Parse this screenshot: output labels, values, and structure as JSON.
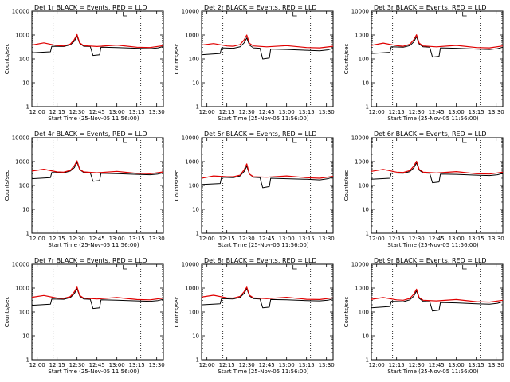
{
  "figure": {
    "colors": {
      "events": "#000000",
      "lld": "#e00000",
      "axes": "#000000",
      "background": "#ffffff"
    }
  },
  "chart_data": [
    {
      "type": "line",
      "title": "Det 1r BLACK = Events, RED = LLD",
      "xlabel": "Start Time (25-Nov-05 11:56:00)",
      "ylabel": "Counts/sec",
      "x_ticks": [
        "12:00",
        "12:15",
        "12:30",
        "12:45",
        "13:00",
        "13:15",
        "13:30"
      ],
      "y_ticks": [
        "1",
        "10",
        "100",
        "1000",
        "10000"
      ],
      "ylim": [
        1,
        10000
      ],
      "yscale": "log",
      "xlim": [
        "11:56",
        "13:35"
      ],
      "x_markers": [
        "12:12",
        "13:18"
      ],
      "series": [
        {
          "name": "Events",
          "x": [
            "11:56",
            "12:10",
            "12:11",
            "12:20",
            "12:25",
            "12:28",
            "12:30",
            "12:32",
            "12:35",
            "12:40",
            "12:42",
            "12:47",
            "12:48",
            "13:00",
            "13:15",
            "13:25",
            "13:31",
            "13:35"
          ],
          "values": [
            180,
            200,
            340,
            330,
            390,
            550,
            900,
            450,
            340,
            330,
            140,
            150,
            310,
            300,
            280,
            270,
            290,
            330
          ]
        },
        {
          "name": "LLD",
          "x": [
            "11:56",
            "12:05",
            "12:15",
            "12:20",
            "12:25",
            "12:28",
            "12:30",
            "12:32",
            "12:35",
            "12:45",
            "13:00",
            "13:15",
            "13:25",
            "13:35"
          ],
          "values": [
            380,
            470,
            360,
            350,
            420,
            650,
            1050,
            470,
            360,
            330,
            380,
            310,
            300,
            360
          ]
        }
      ]
    },
    {
      "type": "line",
      "title": "Det 2r BLACK = Events, RED = LLD",
      "xlabel": "Start Time (25-Nov-05 11:56:00)",
      "ylabel": "Counts/sec",
      "x_ticks": [
        "12:00",
        "12:15",
        "12:30",
        "12:45",
        "13:00",
        "13:15",
        "13:30"
      ],
      "y_ticks": [
        "1",
        "10",
        "100",
        "1000",
        "10000"
      ],
      "ylim": [
        1,
        10000
      ],
      "yscale": "log",
      "xlim": [
        "11:56",
        "13:35"
      ],
      "x_markers": [
        "12:12",
        "13:18"
      ],
      "series": [
        {
          "name": "Events",
          "x": [
            "11:56",
            "12:10",
            "12:11",
            "12:20",
            "12:25",
            "12:28",
            "12:30",
            "12:32",
            "12:35",
            "12:40",
            "12:42",
            "12:47",
            "12:48",
            "13:00",
            "13:15",
            "13:25",
            "13:31",
            "13:35"
          ],
          "values": [
            150,
            170,
            290,
            280,
            320,
            470,
            750,
            380,
            290,
            280,
            100,
            110,
            260,
            250,
            230,
            220,
            240,
            280
          ]
        },
        {
          "name": "LLD",
          "x": [
            "11:56",
            "12:05",
            "12:15",
            "12:20",
            "12:25",
            "12:28",
            "12:30",
            "12:32",
            "12:35",
            "12:45",
            "13:00",
            "13:15",
            "13:25",
            "13:35"
          ],
          "values": [
            380,
            440,
            350,
            340,
            400,
            620,
            1000,
            450,
            350,
            320,
            360,
            300,
            290,
            340
          ]
        }
      ]
    },
    {
      "type": "line",
      "title": "Det 3r BLACK = Events, RED = LLD",
      "xlabel": "Start Time (25-Nov-05 11:56:00)",
      "ylabel": "Counts/sec",
      "x_ticks": [
        "12:00",
        "12:15",
        "12:30",
        "12:45",
        "13:00",
        "13:15",
        "13:30"
      ],
      "y_ticks": [
        "1",
        "10",
        "100",
        "1000",
        "10000"
      ],
      "ylim": [
        1,
        10000
      ],
      "yscale": "log",
      "xlim": [
        "11:56",
        "13:35"
      ],
      "x_markers": [
        "12:12",
        "13:18"
      ],
      "series": [
        {
          "name": "Events",
          "x": [
            "11:56",
            "12:10",
            "12:11",
            "12:20",
            "12:25",
            "12:28",
            "12:30",
            "12:32",
            "12:35",
            "12:40",
            "12:42",
            "12:47",
            "12:48",
            "13:00",
            "13:15",
            "13:25",
            "13:31",
            "13:35"
          ],
          "values": [
            170,
            190,
            320,
            310,
            360,
            520,
            850,
            420,
            320,
            310,
            120,
            130,
            290,
            280,
            260,
            250,
            270,
            310
          ]
        },
        {
          "name": "LLD",
          "x": [
            "11:56",
            "12:05",
            "12:15",
            "12:20",
            "12:25",
            "12:28",
            "12:30",
            "12:32",
            "12:35",
            "12:45",
            "13:00",
            "13:15",
            "13:25",
            "13:35"
          ],
          "values": [
            370,
            460,
            360,
            340,
            410,
            640,
            1020,
            460,
            350,
            320,
            370,
            300,
            290,
            350
          ]
        }
      ]
    },
    {
      "type": "line",
      "title": "Det 4r BLACK = Events, RED = LLD",
      "xlabel": "Start Time (25-Nov-05 11:56:00)",
      "ylabel": "Counts/sec",
      "x_ticks": [
        "12:00",
        "12:15",
        "12:30",
        "12:45",
        "13:00",
        "13:15",
        "13:30"
      ],
      "y_ticks": [
        "1",
        "10",
        "100",
        "1000",
        "10000"
      ],
      "ylim": [
        1,
        10000
      ],
      "yscale": "log",
      "xlim": [
        "11:56",
        "13:35"
      ],
      "x_markers": [
        "12:12",
        "13:18"
      ],
      "series": [
        {
          "name": "Events",
          "x": [
            "11:56",
            "12:10",
            "12:11",
            "12:20",
            "12:25",
            "12:28",
            "12:30",
            "12:32",
            "12:35",
            "12:40",
            "12:42",
            "12:47",
            "12:48",
            "13:00",
            "13:15",
            "13:25",
            "13:31",
            "13:35"
          ],
          "values": [
            190,
            210,
            350,
            340,
            400,
            560,
            920,
            460,
            350,
            340,
            150,
            160,
            320,
            310,
            290,
            280,
            300,
            340
          ]
        },
        {
          "name": "LLD",
          "x": [
            "11:56",
            "12:05",
            "12:15",
            "12:20",
            "12:25",
            "12:28",
            "12:30",
            "12:32",
            "12:35",
            "12:45",
            "13:00",
            "13:15",
            "13:25",
            "13:35"
          ],
          "values": [
            400,
            480,
            370,
            360,
            430,
            670,
            1080,
            480,
            370,
            340,
            390,
            320,
            310,
            370
          ]
        }
      ]
    },
    {
      "type": "line",
      "title": "Det 5r BLACK = Events, RED = LLD",
      "xlabel": "Start Time (25-Nov-05 11:56:00)",
      "ylabel": "Counts/sec",
      "x_ticks": [
        "12:00",
        "12:15",
        "12:30",
        "12:45",
        "13:00",
        "13:15",
        "13:30"
      ],
      "y_ticks": [
        "1",
        "10",
        "100",
        "1000",
        "10000"
      ],
      "ylim": [
        1,
        10000
      ],
      "yscale": "log",
      "xlim": [
        "11:56",
        "13:35"
      ],
      "x_markers": [
        "12:12",
        "13:18"
      ],
      "series": [
        {
          "name": "Events",
          "x": [
            "11:56",
            "12:10",
            "12:11",
            "12:20",
            "12:25",
            "12:28",
            "12:30",
            "12:32",
            "12:35",
            "12:40",
            "12:42",
            "12:47",
            "12:48",
            "13:00",
            "13:15",
            "13:25",
            "13:31",
            "13:35"
          ],
          "values": [
            110,
            120,
            220,
            210,
            250,
            380,
            640,
            300,
            220,
            210,
            80,
            90,
            200,
            190,
            180,
            170,
            190,
            220
          ]
        },
        {
          "name": "LLD",
          "x": [
            "11:56",
            "12:05",
            "12:15",
            "12:20",
            "12:25",
            "12:28",
            "12:30",
            "12:32",
            "12:35",
            "12:45",
            "13:00",
            "13:15",
            "13:25",
            "13:35"
          ],
          "values": [
            200,
            250,
            230,
            230,
            270,
            450,
            800,
            300,
            230,
            220,
            250,
            210,
            200,
            240
          ]
        }
      ]
    },
    {
      "type": "line",
      "title": "Det 6r BLACK = Events, RED = LLD",
      "xlabel": "Start Time (25-Nov-05 11:56:00)",
      "ylabel": "Counts/sec",
      "x_ticks": [
        "12:00",
        "12:15",
        "12:30",
        "12:45",
        "13:00",
        "13:15",
        "13:30"
      ],
      "y_ticks": [
        "1",
        "10",
        "100",
        "1000",
        "10000"
      ],
      "ylim": [
        1,
        10000
      ],
      "yscale": "log",
      "xlim": [
        "11:56",
        "13:35"
      ],
      "x_markers": [
        "12:12",
        "13:18"
      ],
      "series": [
        {
          "name": "Events",
          "x": [
            "11:56",
            "12:10",
            "12:11",
            "12:20",
            "12:25",
            "12:28",
            "12:30",
            "12:32",
            "12:35",
            "12:40",
            "12:42",
            "12:47",
            "12:48",
            "13:00",
            "13:15",
            "13:25",
            "13:31",
            "13:35"
          ],
          "values": [
            180,
            200,
            330,
            320,
            380,
            540,
            880,
            440,
            330,
            320,
            130,
            140,
            300,
            290,
            270,
            260,
            280,
            320
          ]
        },
        {
          "name": "LLD",
          "x": [
            "11:56",
            "12:05",
            "12:15",
            "12:20",
            "12:25",
            "12:28",
            "12:30",
            "12:32",
            "12:35",
            "12:45",
            "13:00",
            "13:15",
            "13:25",
            "13:35"
          ],
          "values": [
            390,
            470,
            360,
            350,
            420,
            650,
            1040,
            470,
            360,
            330,
            380,
            310,
            300,
            360
          ]
        }
      ]
    },
    {
      "type": "line",
      "title": "Det 7r BLACK = Events, RED = LLD",
      "xlabel": "Start Time (25-Nov-05 11:56:00)",
      "ylabel": "Counts/sec",
      "x_ticks": [
        "12:00",
        "12:15",
        "12:30",
        "12:45",
        "13:00",
        "13:15",
        "13:30"
      ],
      "y_ticks": [
        "1",
        "10",
        "100",
        "1000",
        "10000"
      ],
      "ylim": [
        1,
        10000
      ],
      "yscale": "log",
      "xlim": [
        "11:56",
        "13:35"
      ],
      "x_markers": [
        "12:12",
        "13:18"
      ],
      "series": [
        {
          "name": "Events",
          "x": [
            "11:56",
            "12:10",
            "12:11",
            "12:20",
            "12:25",
            "12:28",
            "12:30",
            "12:32",
            "12:35",
            "12:40",
            "12:42",
            "12:47",
            "12:48",
            "13:00",
            "13:15",
            "13:25",
            "13:31",
            "13:35"
          ],
          "values": [
            190,
            210,
            350,
            340,
            400,
            580,
            950,
            460,
            350,
            340,
            140,
            150,
            320,
            310,
            290,
            280,
            300,
            340
          ]
        },
        {
          "name": "LLD",
          "x": [
            "11:56",
            "12:05",
            "12:15",
            "12:20",
            "12:25",
            "12:28",
            "12:30",
            "12:32",
            "12:35",
            "12:45",
            "13:00",
            "13:15",
            "13:25",
            "13:35"
          ],
          "values": [
            410,
            490,
            380,
            370,
            440,
            690,
            1100,
            490,
            380,
            350,
            400,
            330,
            320,
            380
          ]
        }
      ]
    },
    {
      "type": "line",
      "title": "Det 8r BLACK = Events, RED = LLD",
      "xlabel": "Start Time (25-Nov-05 11:56:00)",
      "ylabel": "Counts/sec",
      "x_ticks": [
        "12:00",
        "12:15",
        "12:30",
        "12:45",
        "13:00",
        "13:15",
        "13:30"
      ],
      "y_ticks": [
        "1",
        "10",
        "100",
        "1000",
        "10000"
      ],
      "ylim": [
        1,
        10000
      ],
      "yscale": "log",
      "xlim": [
        "11:56",
        "13:35"
      ],
      "x_markers": [
        "12:12",
        "13:18"
      ],
      "series": [
        {
          "name": "Events",
          "x": [
            "11:56",
            "12:10",
            "12:11",
            "12:20",
            "12:25",
            "12:28",
            "12:30",
            "12:32",
            "12:35",
            "12:40",
            "12:42",
            "12:47",
            "12:48",
            "13:00",
            "13:15",
            "13:25",
            "13:31",
            "13:35"
          ],
          "values": [
            200,
            220,
            360,
            350,
            410,
            590,
            960,
            470,
            360,
            350,
            150,
            160,
            330,
            320,
            300,
            290,
            310,
            350
          ]
        },
        {
          "name": "LLD",
          "x": [
            "11:56",
            "12:05",
            "12:15",
            "12:20",
            "12:25",
            "12:28",
            "12:30",
            "12:32",
            "12:35",
            "12:45",
            "13:00",
            "13:15",
            "13:25",
            "13:35"
          ],
          "values": [
            420,
            500,
            390,
            380,
            450,
            700,
            1100,
            500,
            390,
            360,
            410,
            340,
            330,
            390
          ]
        }
      ]
    },
    {
      "type": "line",
      "title": "Det 9r BLACK = Events, RED = LLD",
      "xlabel": "Start Time (25-Nov-05 11:56:00)",
      "ylabel": "Counts/sec",
      "x_ticks": [
        "12:00",
        "12:15",
        "12:30",
        "12:45",
        "13:00",
        "13:15",
        "13:30"
      ],
      "y_ticks": [
        "1",
        "10",
        "100",
        "1000",
        "10000"
      ],
      "ylim": [
        1,
        10000
      ],
      "yscale": "log",
      "xlim": [
        "11:56",
        "13:35"
      ],
      "x_markers": [
        "12:12",
        "13:18"
      ],
      "series": [
        {
          "name": "Events",
          "x": [
            "11:56",
            "12:10",
            "12:11",
            "12:20",
            "12:25",
            "12:28",
            "12:30",
            "12:32",
            "12:35",
            "12:40",
            "12:42",
            "12:47",
            "12:48",
            "13:00",
            "13:15",
            "13:25",
            "13:31",
            "13:35"
          ],
          "values": [
            150,
            170,
            280,
            270,
            320,
            460,
            760,
            370,
            280,
            270,
            110,
            120,
            250,
            240,
            220,
            210,
            230,
            270
          ]
        },
        {
          "name": "LLD",
          "x": [
            "11:56",
            "12:05",
            "12:15",
            "12:20",
            "12:25",
            "12:28",
            "12:30",
            "12:32",
            "12:35",
            "12:45",
            "13:00",
            "13:15",
            "13:25",
            "13:35"
          ],
          "values": [
            340,
            400,
            320,
            310,
            370,
            560,
            900,
            400,
            310,
            290,
            330,
            270,
            260,
            310
          ]
        }
      ]
    }
  ]
}
